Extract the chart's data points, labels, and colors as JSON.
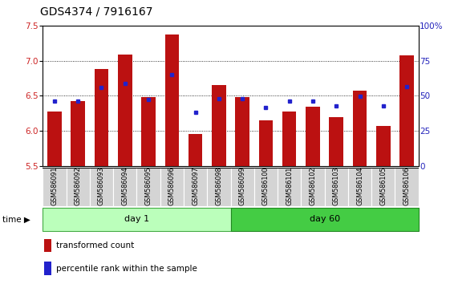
{
  "title": "GDS4374 / 7916167",
  "samples": [
    "GSM586091",
    "GSM586092",
    "GSM586093",
    "GSM586094",
    "GSM586095",
    "GSM586096",
    "GSM586097",
    "GSM586098",
    "GSM586099",
    "GSM586100",
    "GSM586101",
    "GSM586102",
    "GSM586103",
    "GSM586104",
    "GSM586105",
    "GSM586106"
  ],
  "red_values": [
    6.28,
    6.43,
    6.88,
    7.09,
    6.48,
    7.37,
    5.96,
    6.65,
    6.48,
    6.15,
    6.28,
    6.35,
    6.2,
    6.57,
    6.07,
    7.08
  ],
  "blue_values": [
    6.43,
    6.42,
    6.62,
    6.68,
    6.45,
    6.8,
    6.27,
    6.46,
    6.46,
    6.33,
    6.42,
    6.43,
    6.36,
    6.49,
    6.36,
    6.63
  ],
  "day1_samples": 8,
  "day60_samples": 8,
  "ylim_left": [
    5.5,
    7.5
  ],
  "ylim_right": [
    0,
    100
  ],
  "yticks_left": [
    5.5,
    6.0,
    6.5,
    7.0,
    7.5
  ],
  "yticks_right": [
    0,
    25,
    50,
    75,
    100
  ],
  "bar_color": "#bb1111",
  "dot_color": "#2222cc",
  "day1_color_light": "#bbffbb",
  "day60_color_dark": "#44cc44",
  "day1_label": "day 1",
  "day60_label": "day 60",
  "legend_red": "transformed count",
  "legend_blue": "percentile rank within the sample",
  "ylabel_left_color": "#cc2222",
  "ylabel_right_color": "#2222bb",
  "title_fontsize": 10,
  "axis_fontsize": 7.5,
  "label_fontsize": 5.8,
  "bar_bottom": 5.5,
  "bar_width": 0.6
}
